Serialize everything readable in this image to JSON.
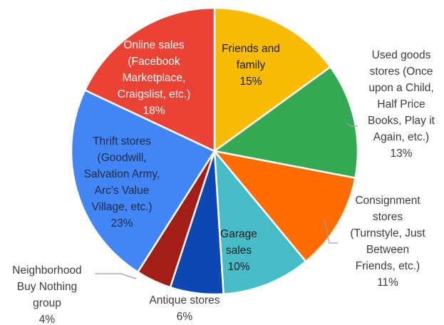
{
  "chart_data": {
    "type": "pie",
    "title": "",
    "slices": [
      {
        "lines": [
          "Friends and",
          "family",
          "15%"
        ],
        "value": 15,
        "color": "#f9bc06",
        "text_color": "#1a1a1a",
        "label_pos": "inside"
      },
      {
        "lines": [
          "Used goods",
          "stores (Once",
          "upon a Child,",
          "Half Price",
          "Books, Play it",
          "Again, etc.)",
          "13%"
        ],
        "value": 13,
        "color": "#34a853",
        "text_color": "#3d3d3d",
        "label_pos": "outside"
      },
      {
        "lines": [
          "Consignment",
          "stores",
          "(Turnstyle, Just",
          "Between",
          "Friends, etc.)",
          "11%"
        ],
        "value": 11,
        "color": "#ff6d01",
        "text_color": "#3d3d3d",
        "label_pos": "outside"
      },
      {
        "lines": [
          "Garage",
          "sales",
          "10%"
        ],
        "value": 10,
        "color": "#46bdc6",
        "text_color": "#1a1a1a",
        "label_pos": "inside"
      },
      {
        "lines": [
          "Antique stores",
          "6%"
        ],
        "value": 6,
        "color": "#0b48b3",
        "text_color": "#3d3d3d",
        "label_pos": "outside"
      },
      {
        "lines": [
          "Neighborhood",
          "Buy Nothing",
          "group",
          "4%"
        ],
        "value": 4,
        "color": "#a21e16",
        "text_color": "#3d3d3d",
        "label_pos": "outside"
      },
      {
        "lines": [
          "Thrift stores",
          "(Goodwill,",
          "Salvation Army,",
          "Arc's Value",
          "Village, etc.)",
          "23%"
        ],
        "value": 23,
        "color": "#4285f4",
        "text_color": "#1f2a44",
        "label_pos": "inside"
      },
      {
        "lines": [
          "Online sales",
          "(Facebook",
          "Marketplace,",
          "Craigslist, etc.)",
          "18%"
        ],
        "value": 18,
        "color": "#ea4335",
        "text_color": "#ffffff",
        "label_pos": "inside"
      }
    ]
  }
}
